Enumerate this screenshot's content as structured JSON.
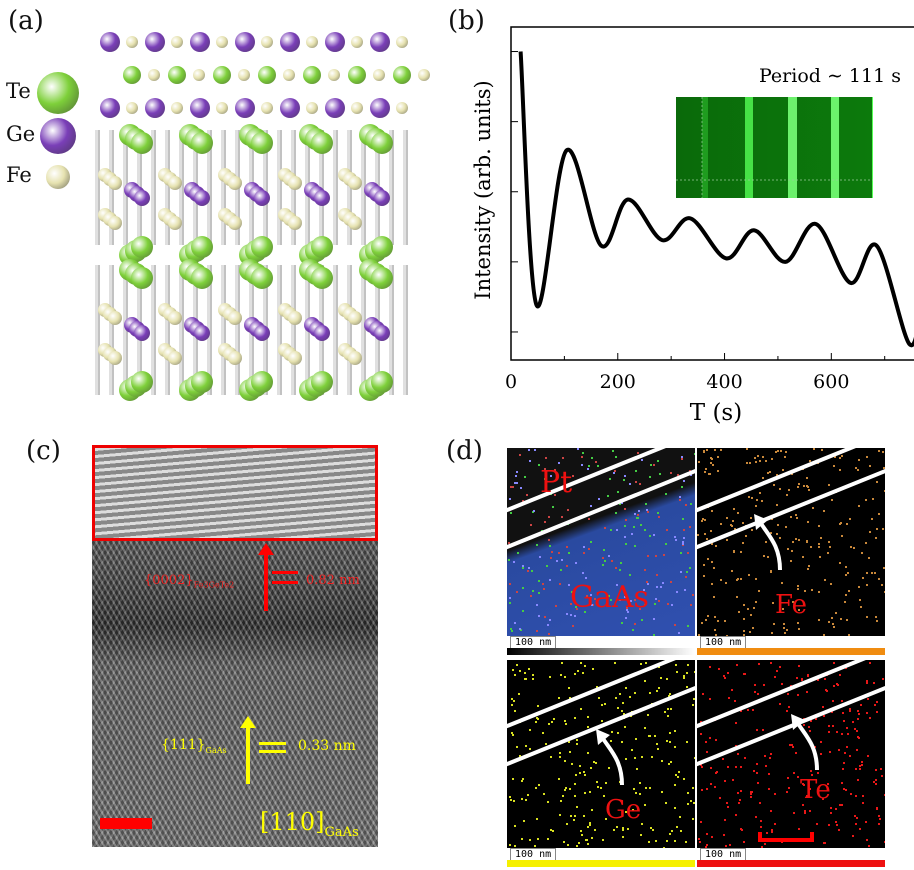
{
  "panels": {
    "a": "(a)",
    "b": "(b)",
    "c": "(c)",
    "d": "(d)"
  },
  "legend": [
    {
      "label": "Te",
      "color": "#7ed03a"
    },
    {
      "label": "Ge",
      "color": "#7a3fb8"
    },
    {
      "label": "Fe",
      "color": "#e6e2b0"
    }
  ],
  "tem": {
    "label_fgt": "{0002}",
    "label_fgt_sub": "Fe3GeTe2",
    "spacing_fgt": "0.82 nm",
    "label_gaas": "{111}",
    "label_gaas_sub": "GaAs",
    "spacing_gaas": "0.33 nm",
    "zone": "[110]",
    "zone_sub": "GaAs"
  },
  "eds": {
    "labels": [
      "Pt",
      "GaAs",
      "Fe",
      "Ge",
      "Te"
    ],
    "scale": "100 nm",
    "bar_colors": [
      "#888888",
      "#f08c10",
      "#f5f000",
      "#ee1111"
    ]
  },
  "chart_data": {
    "type": "line",
    "title": "",
    "annotation": "Period ∼ 111 s",
    "xlabel": "T (s)",
    "ylabel": "Intensity (arb. units)",
    "xlim": [
      0,
      768
    ],
    "ylim": [
      -0.4,
      4.35
    ],
    "xticks": [
      0,
      200,
      400,
      600
    ],
    "x": [
      18,
      48,
      104,
      169,
      219,
      283,
      336,
      403,
      455,
      514,
      571,
      636,
      685,
      746,
      769
    ],
    "y": [
      4.0,
      0.38,
      2.59,
      1.23,
      1.89,
      1.31,
      1.62,
      1.05,
      1.45,
      1.0,
      1.54,
      0.7,
      1.23,
      -0.17,
      0.39
    ]
  }
}
